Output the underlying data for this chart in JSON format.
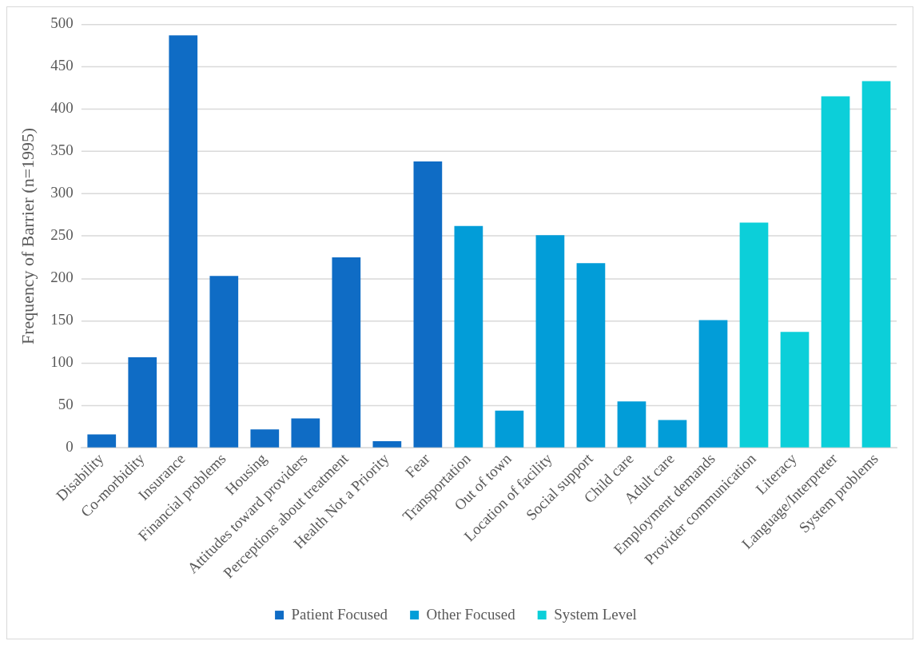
{
  "chart_data": {
    "type": "bar",
    "ylabel": "Frequency of Barrier (n=1995)",
    "categories": [
      "Disability",
      "Co-morbidity",
      "Insurance",
      "Financial problems",
      "Housing",
      "Attitudes toward providers",
      "Perceptions about treatment",
      "Health Not a Priority",
      "Fear",
      "Transportation",
      "Out of town",
      "Location of facility",
      "Social support",
      "Child care",
      "Adult care",
      "Employment demands",
      "Provider communication",
      "Literacy",
      "Language/Interpreter",
      "System problems"
    ],
    "series": [
      {
        "name": "Patient Focused",
        "color": "#0f6cc5",
        "values": [
          16,
          107,
          487,
          203,
          22,
          35,
          225,
          8,
          338,
          null,
          null,
          null,
          null,
          null,
          null,
          null,
          null,
          null,
          null,
          null
        ]
      },
      {
        "name": "Other Focused",
        "color": "#029dd8",
        "values": [
          null,
          null,
          null,
          null,
          null,
          null,
          null,
          null,
          null,
          262,
          44,
          251,
          218,
          55,
          33,
          151,
          null,
          null,
          null,
          null
        ]
      },
      {
        "name": "System Level",
        "color": "#0ccfd9",
        "values": [
          null,
          null,
          null,
          null,
          null,
          null,
          null,
          null,
          null,
          null,
          null,
          null,
          null,
          null,
          null,
          null,
          266,
          137,
          415,
          433
        ]
      }
    ],
    "ylim": [
      0,
      500
    ],
    "yticks": [
      0,
      50,
      100,
      150,
      200,
      250,
      300,
      350,
      400,
      450,
      500
    ],
    "grid": "y",
    "legend": "bottom"
  }
}
